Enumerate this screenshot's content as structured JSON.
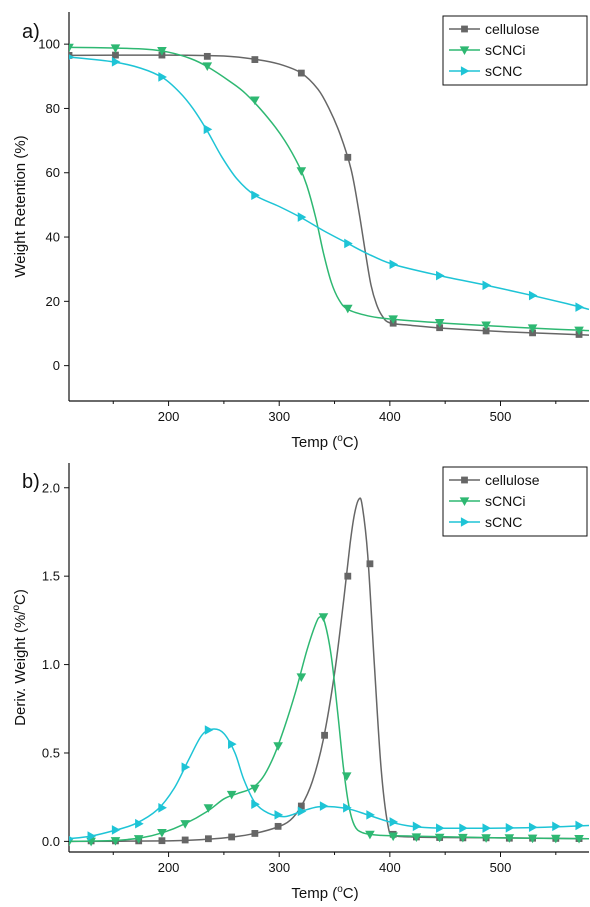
{
  "chart_data": [
    {
      "type": "line",
      "panel_label": "a)",
      "xlabel": "Temp (",
      "xlabel_sup": "o",
      "xlabel_end": "C)",
      "ylabel": "Weight Retention (%)",
      "xlim": [
        110,
        580
      ],
      "ylim": [
        -11,
        110
      ],
      "xticks": [
        200,
        300,
        400,
        500
      ],
      "yticks": [
        0,
        20,
        40,
        60,
        80,
        100
      ],
      "grid": false,
      "legend_position": "top-right",
      "series": [
        {
          "name": "cellulose",
          "color": "#666666",
          "marker": "square",
          "curve": [
            [
              110,
              96.5
            ],
            [
              200,
              96.6
            ],
            [
              250,
              96.3
            ],
            [
              280,
              95.2
            ],
            [
              300,
              93.8
            ],
            [
              320,
              91.0
            ],
            [
              335,
              86
            ],
            [
              345,
              80
            ],
            [
              355,
              72
            ],
            [
              365,
              61
            ],
            [
              372,
              48
            ],
            [
              378,
              35
            ],
            [
              383,
              25
            ],
            [
              388,
              19
            ],
            [
              393,
              15.5
            ],
            [
              400,
              13.3
            ],
            [
              420,
              12.5
            ],
            [
              450,
              11.6
            ],
            [
              500,
              10.6
            ],
            [
              550,
              9.9
            ],
            [
              580,
              9.5
            ]
          ],
          "markers": [
            [
              110,
              96.5
            ],
            [
              152,
              96.6
            ],
            [
              194,
              96.6
            ],
            [
              235,
              96.2
            ],
            [
              278,
              95.2
            ],
            [
              320,
              91.0
            ],
            [
              362,
              64.8
            ],
            [
              403,
              13.2
            ],
            [
              445,
              11.8
            ],
            [
              487,
              10.8
            ],
            [
              529,
              10.2
            ],
            [
              571,
              9.7
            ]
          ]
        },
        {
          "name": "sCNCi",
          "color": "#2eb872",
          "marker": "triangle-down",
          "curve": [
            [
              110,
              99
            ],
            [
              150,
              98.8
            ],
            [
              180,
              98.4
            ],
            [
              200,
              97.5
            ],
            [
              220,
              95.5
            ],
            [
              235,
              93
            ],
            [
              255,
              88.5
            ],
            [
              270,
              84.5
            ],
            [
              290,
              77
            ],
            [
              305,
              70
            ],
            [
              318,
              62
            ],
            [
              325,
              56
            ],
            [
              333,
              46
            ],
            [
              340,
              35
            ],
            [
              347,
              26
            ],
            [
              354,
              20.5
            ],
            [
              362,
              17.5
            ],
            [
              380,
              15.5
            ],
            [
              400,
              14.5
            ],
            [
              450,
              13.2
            ],
            [
              500,
              12.2
            ],
            [
              550,
              11.3
            ],
            [
              580,
              10.9
            ]
          ],
          "markers": [
            [
              110,
              99
            ],
            [
              152,
              98.8
            ],
            [
              194,
              98
            ],
            [
              235,
              93.2
            ],
            [
              278,
              82.6
            ],
            [
              320,
              60.6
            ],
            [
              362,
              17.8
            ],
            [
              403,
              14.5
            ],
            [
              445,
              13.4
            ],
            [
              487,
              12.6
            ],
            [
              529,
              11.7
            ],
            [
              571,
              11
            ]
          ]
        },
        {
          "name": "sCNC",
          "color": "#1ec4d6",
          "marker": "triangle-right",
          "curve": [
            [
              110,
              96
            ],
            [
              150,
              94.5
            ],
            [
              175,
              92.5
            ],
            [
              195,
              89.5
            ],
            [
              210,
              85
            ],
            [
              222,
              80
            ],
            [
              235,
              73
            ],
            [
              248,
              65
            ],
            [
              262,
              58
            ],
            [
              278,
              53
            ],
            [
              300,
              49.5
            ],
            [
              320,
              46
            ],
            [
              340,
              42
            ],
            [
              362,
              38
            ],
            [
              380,
              34.8
            ],
            [
              403,
              31.5
            ],
            [
              445,
              28
            ],
            [
              487,
              25
            ],
            [
              529,
              21.8
            ],
            [
              560,
              19.3
            ],
            [
              580,
              17.5
            ]
          ],
          "markers": [
            [
              110,
              96
            ],
            [
              152,
              94.5
            ],
            [
              194,
              89.8
            ],
            [
              235,
              73.5
            ],
            [
              278,
              53
            ],
            [
              320,
              46.2
            ],
            [
              362,
              38
            ],
            [
              403,
              31.5
            ],
            [
              445,
              28
            ],
            [
              487,
              25
            ],
            [
              529,
              21.8
            ],
            [
              571,
              18.2
            ]
          ]
        }
      ]
    },
    {
      "type": "line",
      "panel_label": "b)",
      "xlabel": "Temp (",
      "xlabel_sup": "o",
      "xlabel_end": "C)",
      "ylabel": "Deriv. Weight (%/",
      "ylabel_sup": "o",
      "ylabel_end": "C)",
      "xlim": [
        110,
        580
      ],
      "ylim": [
        -0.06,
        2.14
      ],
      "xticks": [
        200,
        300,
        400,
        500
      ],
      "yticks": [
        0.0,
        0.5,
        1.0,
        1.5,
        2.0
      ],
      "ytick_labels": [
        "0.0",
        "0.5",
        "1.0",
        "1.5",
        "2.0"
      ],
      "grid": false,
      "legend_position": "top-right",
      "series": [
        {
          "name": "cellulose",
          "color": "#666666",
          "marker": "square",
          "curve": [
            [
              110,
              0
            ],
            [
              200,
              0.003
            ],
            [
              235,
              0.012
            ],
            [
              258,
              0.025
            ],
            [
              278,
              0.045
            ],
            [
              298,
              0.08
            ],
            [
              310,
              0.12
            ],
            [
              320,
              0.2
            ],
            [
              330,
              0.34
            ],
            [
              340,
              0.58
            ],
            [
              350,
              0.95
            ],
            [
              358,
              1.35
            ],
            [
              364,
              1.68
            ],
            [
              368,
              1.85
            ],
            [
              372,
              1.935
            ],
            [
              375,
              1.9
            ],
            [
              380,
              1.62
            ],
            [
              386,
              1.0
            ],
            [
              392,
              0.42
            ],
            [
              398,
              0.1
            ],
            [
              403,
              0.04
            ],
            [
              420,
              0.025
            ],
            [
              500,
              0.02
            ],
            [
              580,
              0.015
            ]
          ],
          "markers": [
            [
              130,
              0.003
            ],
            [
              152,
              0.003
            ],
            [
              173,
              0.003
            ],
            [
              194,
              0.004
            ],
            [
              215,
              0.008
            ],
            [
              236,
              0.015
            ],
            [
              257,
              0.025
            ],
            [
              278,
              0.045
            ],
            [
              299,
              0.085
            ],
            [
              320,
              0.2
            ],
            [
              341,
              0.6
            ],
            [
              362,
              1.5
            ],
            [
              382,
              1.57
            ],
            [
              403,
              0.04
            ],
            [
              424,
              0.025
            ],
            [
              445,
              0.022
            ],
            [
              466,
              0.02
            ],
            [
              487,
              0.02
            ],
            [
              508,
              0.018
            ],
            [
              529,
              0.018
            ],
            [
              550,
              0.017
            ],
            [
              571,
              0.016
            ]
          ]
        },
        {
          "name": "sCNCi",
          "color": "#2eb872",
          "marker": "triangle-down",
          "curve": [
            [
              110,
              0
            ],
            [
              150,
              0.005
            ],
            [
              175,
              0.02
            ],
            [
              195,
              0.05
            ],
            [
              215,
              0.1
            ],
            [
              235,
              0.17
            ],
            [
              250,
              0.24
            ],
            [
              262,
              0.27
            ],
            [
              275,
              0.3
            ],
            [
              285,
              0.36
            ],
            [
              295,
              0.48
            ],
            [
              305,
              0.65
            ],
            [
              315,
              0.85
            ],
            [
              325,
              1.08
            ],
            [
              333,
              1.23
            ],
            [
              337,
              1.27
            ],
            [
              341,
              1.24
            ],
            [
              347,
              1.05
            ],
            [
              353,
              0.72
            ],
            [
              358,
              0.42
            ],
            [
              363,
              0.2
            ],
            [
              368,
              0.09
            ],
            [
              375,
              0.05
            ],
            [
              390,
              0.035
            ],
            [
              420,
              0.03
            ],
            [
              500,
              0.02
            ],
            [
              580,
              0.015
            ]
          ],
          "markers": [
            [
              110,
              0.0
            ],
            [
              130,
              0.0
            ],
            [
              152,
              0.004
            ],
            [
              173,
              0.015
            ],
            [
              194,
              0.05
            ],
            [
              215,
              0.1
            ],
            [
              236,
              0.19
            ],
            [
              257,
              0.265
            ],
            [
              278,
              0.3
            ],
            [
              299,
              0.54
            ],
            [
              320,
              0.93
            ],
            [
              340,
              1.27
            ],
            [
              361,
              0.37
            ],
            [
              382,
              0.04
            ],
            [
              403,
              0.03
            ],
            [
              424,
              0.025
            ],
            [
              445,
              0.023
            ],
            [
              466,
              0.022
            ],
            [
              487,
              0.02
            ],
            [
              508,
              0.02
            ],
            [
              529,
              0.018
            ],
            [
              550,
              0.017
            ],
            [
              571,
              0.016
            ]
          ]
        },
        {
          "name": "sCNC",
          "color": "#1ec4d6",
          "marker": "triangle-right",
          "curve": [
            [
              110,
              0.015
            ],
            [
              130,
              0.03
            ],
            [
              150,
              0.06
            ],
            [
              170,
              0.1
            ],
            [
              190,
              0.18
            ],
            [
              205,
              0.3
            ],
            [
              218,
              0.46
            ],
            [
              230,
              0.6
            ],
            [
              240,
              0.635
            ],
            [
              250,
              0.61
            ],
            [
              260,
              0.5
            ],
            [
              268,
              0.35
            ],
            [
              278,
              0.22
            ],
            [
              290,
              0.16
            ],
            [
              305,
              0.14
            ],
            [
              320,
              0.17
            ],
            [
              335,
              0.195
            ],
            [
              350,
              0.195
            ],
            [
              365,
              0.18
            ],
            [
              380,
              0.15
            ],
            [
              400,
              0.11
            ],
            [
              420,
              0.085
            ],
            [
              445,
              0.075
            ],
            [
              500,
              0.075
            ],
            [
              540,
              0.08
            ],
            [
              580,
              0.09
            ]
          ],
          "markers": [
            [
              110,
              0.015
            ],
            [
              130,
              0.03
            ],
            [
              152,
              0.065
            ],
            [
              173,
              0.1
            ],
            [
              194,
              0.19
            ],
            [
              215,
              0.42
            ],
            [
              236,
              0.63
            ],
            [
              257,
              0.55
            ],
            [
              278,
              0.21
            ],
            [
              299,
              0.15
            ],
            [
              320,
              0.17
            ],
            [
              340,
              0.2
            ],
            [
              361,
              0.19
            ],
            [
              382,
              0.15
            ],
            [
              403,
              0.11
            ],
            [
              424,
              0.085
            ],
            [
              445,
              0.075
            ],
            [
              466,
              0.075
            ],
            [
              487,
              0.075
            ],
            [
              508,
              0.077
            ],
            [
              529,
              0.08
            ],
            [
              550,
              0.085
            ],
            [
              571,
              0.09
            ]
          ]
        }
      ]
    }
  ]
}
